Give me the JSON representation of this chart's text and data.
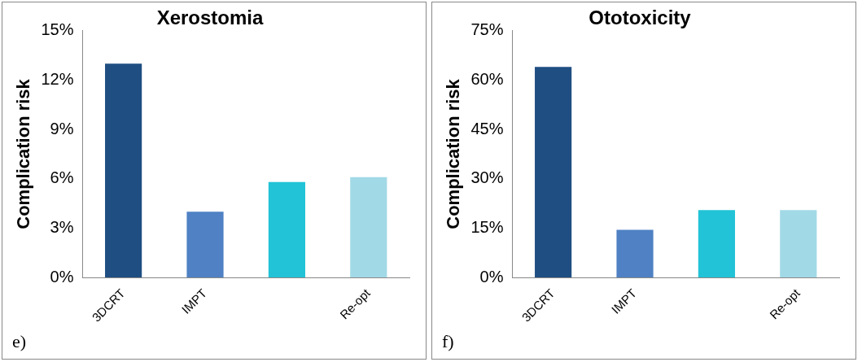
{
  "chart_data": [
    {
      "type": "bar",
      "title": "Xerostomia",
      "ylabel": "Complication risk",
      "categories": [
        "3DCRT",
        "IMPT",
        null,
        "Re-opt"
      ],
      "values": [
        13.0,
        4.0,
        5.8,
        6.1
      ],
      "colors": [
        "#1f4e82",
        "#4f81c4",
        "#22c3d6",
        "#a2d9e6"
      ],
      "ylim": [
        0,
        15
      ],
      "yticks": [
        {
          "value": 0,
          "label": "0%"
        },
        {
          "value": 3,
          "label": "3%"
        },
        {
          "value": 6,
          "label": "6%"
        },
        {
          "value": 9,
          "label": "9%"
        },
        {
          "value": 12,
          "label": "12%"
        },
        {
          "value": 15,
          "label": "15%"
        }
      ],
      "annotations": [
        "e)"
      ]
    },
    {
      "type": "bar",
      "title": "Ototoxicity",
      "ylabel": "Complication risk",
      "categories": [
        "3DCRT",
        "IMPT",
        null,
        "Re-opt"
      ],
      "values": [
        64,
        14.5,
        20.5,
        20.5
      ],
      "colors": [
        "#1f4e82",
        "#4f81c4",
        "#22c3d6",
        "#a2d9e6"
      ],
      "ylim": [
        0,
        75
      ],
      "yticks": [
        {
          "value": 0,
          "label": "0%"
        },
        {
          "value": 15,
          "label": "15%"
        },
        {
          "value": 30,
          "label": "30%"
        },
        {
          "value": 45,
          "label": "45%"
        },
        {
          "value": 60,
          "label": "60%"
        },
        {
          "value": 75,
          "label": "75%"
        }
      ],
      "annotations": [
        "f)"
      ]
    }
  ]
}
